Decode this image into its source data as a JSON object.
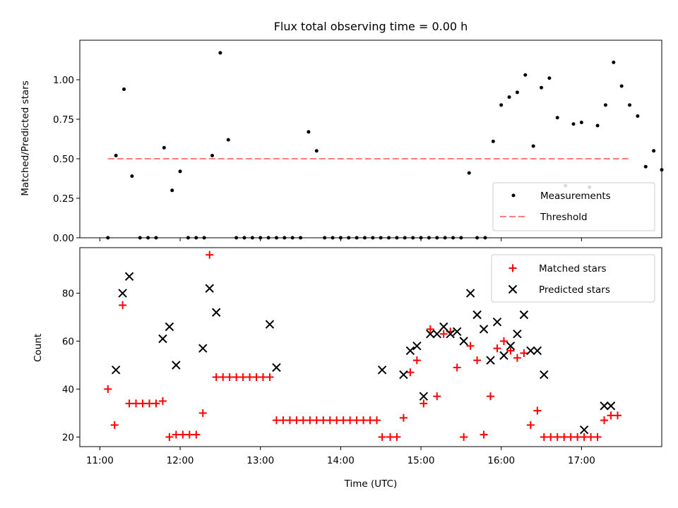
{
  "colors": {
    "measure": "#000000",
    "threshold": "#ff7f7f",
    "matched": "#ff0000",
    "predicted": "#000000"
  },
  "chart_data": [
    {
      "type": "scatter",
      "title": "Flux total observing time = 0.00 h",
      "xlabel": "",
      "ylabel": "Matched/Predicted stars",
      "xlim": [
        "10:45",
        "18:00"
      ],
      "ylim": [
        0,
        1.25
      ],
      "yticks": [
        0,
        0.25,
        0.5,
        0.75,
        1.0
      ],
      "ytick_labels": [
        "0.00",
        "0.25",
        "0.50",
        "0.75",
        "1.00"
      ],
      "grid": false,
      "legend_position": "lower-right",
      "series": [
        {
          "name": "Measurements",
          "style": "dot",
          "points": [
            {
              "x": "11:06",
              "y": 0.0
            },
            {
              "x": "11:12",
              "y": 0.52
            },
            {
              "x": "11:18",
              "y": 0.94
            },
            {
              "x": "11:24",
              "y": 0.39
            },
            {
              "x": "11:30",
              "y": 0.0
            },
            {
              "x": "11:36",
              "y": 0.0
            },
            {
              "x": "11:42",
              "y": 0.0
            },
            {
              "x": "11:48",
              "y": 0.57
            },
            {
              "x": "11:54",
              "y": 0.3
            },
            {
              "x": "12:00",
              "y": 0.42
            },
            {
              "x": "12:06",
              "y": 0.0
            },
            {
              "x": "12:12",
              "y": 0.0
            },
            {
              "x": "12:18",
              "y": 0.0
            },
            {
              "x": "12:24",
              "y": 0.52
            },
            {
              "x": "12:30",
              "y": 1.17
            },
            {
              "x": "12:36",
              "y": 0.62
            },
            {
              "x": "12:42",
              "y": 0.0
            },
            {
              "x": "12:48",
              "y": 0.0
            },
            {
              "x": "12:54",
              "y": 0.0
            },
            {
              "x": "13:00",
              "y": 0.0
            },
            {
              "x": "13:06",
              "y": 0.0
            },
            {
              "x": "13:12",
              "y": 0.0
            },
            {
              "x": "13:18",
              "y": 0.0
            },
            {
              "x": "13:24",
              "y": 0.0
            },
            {
              "x": "13:30",
              "y": 0.0
            },
            {
              "x": "13:36",
              "y": 0.67
            },
            {
              "x": "13:42",
              "y": 0.55
            },
            {
              "x": "13:48",
              "y": 0.0
            },
            {
              "x": "13:54",
              "y": 0.0
            },
            {
              "x": "14:00",
              "y": 0.0
            },
            {
              "x": "14:06",
              "y": 0.0
            },
            {
              "x": "14:12",
              "y": 0.0
            },
            {
              "x": "14:18",
              "y": 0.0
            },
            {
              "x": "14:24",
              "y": 0.0
            },
            {
              "x": "14:30",
              "y": 0.0
            },
            {
              "x": "14:36",
              "y": 0.0
            },
            {
              "x": "14:42",
              "y": 0.0
            },
            {
              "x": "14:48",
              "y": 0.0
            },
            {
              "x": "14:54",
              "y": 0.0
            },
            {
              "x": "15:00",
              "y": 0.0
            },
            {
              "x": "15:06",
              "y": 0.0
            },
            {
              "x": "15:12",
              "y": 0.0
            },
            {
              "x": "15:18",
              "y": 0.0
            },
            {
              "x": "15:24",
              "y": 0.0
            },
            {
              "x": "15:30",
              "y": 0.0
            },
            {
              "x": "15:36",
              "y": 0.41
            },
            {
              "x": "15:42",
              "y": 0.0
            },
            {
              "x": "15:48",
              "y": 0.0
            },
            {
              "x": "15:54",
              "y": 0.61
            },
            {
              "x": "16:00",
              "y": 0.84
            },
            {
              "x": "16:06",
              "y": 0.89
            },
            {
              "x": "16:12",
              "y": 0.92
            },
            {
              "x": "16:18",
              "y": 1.03
            },
            {
              "x": "16:24",
              "y": 0.58
            },
            {
              "x": "16:30",
              "y": 0.95
            },
            {
              "x": "16:36",
              "y": 1.01
            },
            {
              "x": "16:42",
              "y": 0.76
            },
            {
              "x": "16:48",
              "y": 0.33
            },
            {
              "x": "16:54",
              "y": 0.72
            },
            {
              "x": "17:00",
              "y": 0.73
            },
            {
              "x": "17:06",
              "y": 0.32
            },
            {
              "x": "17:12",
              "y": 0.71
            },
            {
              "x": "17:18",
              "y": 0.84
            },
            {
              "x": "17:24",
              "y": 1.11
            },
            {
              "x": "17:30",
              "y": 0.96
            },
            {
              "x": "17:36",
              "y": 0.84
            },
            {
              "x": "17:42",
              "y": 0.77
            },
            {
              "x": "17:48",
              "y": 0.45
            },
            {
              "x": "17:54",
              "y": 0.55
            },
            {
              "x": "18:00",
              "y": 0.43
            }
          ]
        },
        {
          "name": "Threshold",
          "style": "dashed-line",
          "x": [
            "11:06",
            "17:36"
          ],
          "y": 0.5
        }
      ]
    },
    {
      "type": "scatter",
      "title": "",
      "xlabel": "Time (UTC)",
      "ylabel": "Count",
      "xlim": [
        "10:45",
        "18:00"
      ],
      "ylim": [
        16,
        99
      ],
      "yticks": [
        20,
        40,
        60,
        80
      ],
      "ytick_labels": [
        "20",
        "40",
        "60",
        "80"
      ],
      "xticks": [
        "11:00",
        "12:00",
        "13:00",
        "14:00",
        "15:00",
        "16:00",
        "17:00"
      ],
      "grid": false,
      "legend_position": "top-right",
      "series": [
        {
          "name": "Matched stars",
          "marker": "plus",
          "points": [
            {
              "x": "11:06",
              "y": 40
            },
            {
              "x": "11:11",
              "y": 25
            },
            {
              "x": "11:17",
              "y": 75
            },
            {
              "x": "11:22",
              "y": 34
            },
            {
              "x": "11:27",
              "y": 34
            },
            {
              "x": "11:32",
              "y": 34
            },
            {
              "x": "11:37",
              "y": 34
            },
            {
              "x": "11:42",
              "y": 34
            },
            {
              "x": "11:47",
              "y": 35
            },
            {
              "x": "11:52",
              "y": 20
            },
            {
              "x": "11:57",
              "y": 21
            },
            {
              "x": "12:02",
              "y": 21
            },
            {
              "x": "12:07",
              "y": 21
            },
            {
              "x": "12:12",
              "y": 21
            },
            {
              "x": "12:17",
              "y": 30
            },
            {
              "x": "12:22",
              "y": 96
            },
            {
              "x": "12:27",
              "y": 45
            },
            {
              "x": "12:32",
              "y": 45
            },
            {
              "x": "12:37",
              "y": 45
            },
            {
              "x": "12:42",
              "y": 45
            },
            {
              "x": "12:47",
              "y": 45
            },
            {
              "x": "12:52",
              "y": 45
            },
            {
              "x": "12:57",
              "y": 45
            },
            {
              "x": "13:02",
              "y": 45
            },
            {
              "x": "13:07",
              "y": 45
            },
            {
              "x": "13:12",
              "y": 27
            },
            {
              "x": "13:17",
              "y": 27
            },
            {
              "x": "13:22",
              "y": 27
            },
            {
              "x": "13:27",
              "y": 27
            },
            {
              "x": "13:32",
              "y": 27
            },
            {
              "x": "13:37",
              "y": 27
            },
            {
              "x": "13:42",
              "y": 27
            },
            {
              "x": "13:47",
              "y": 27
            },
            {
              "x": "13:52",
              "y": 27
            },
            {
              "x": "13:57",
              "y": 27
            },
            {
              "x": "14:02",
              "y": 27
            },
            {
              "x": "14:07",
              "y": 27
            },
            {
              "x": "14:12",
              "y": 27
            },
            {
              "x": "14:17",
              "y": 27
            },
            {
              "x": "14:22",
              "y": 27
            },
            {
              "x": "14:27",
              "y": 27
            },
            {
              "x": "14:31",
              "y": 20
            },
            {
              "x": "14:37",
              "y": 20
            },
            {
              "x": "14:42",
              "y": 20
            },
            {
              "x": "14:47",
              "y": 28
            },
            {
              "x": "14:52",
              "y": 47
            },
            {
              "x": "14:57",
              "y": 52
            },
            {
              "x": "15:02",
              "y": 34
            },
            {
              "x": "15:07",
              "y": 65
            },
            {
              "x": "15:12",
              "y": 37
            },
            {
              "x": "15:17",
              "y": 63
            },
            {
              "x": "15:22",
              "y": 64
            },
            {
              "x": "15:27",
              "y": 49
            },
            {
              "x": "15:32",
              "y": 20
            },
            {
              "x": "15:37",
              "y": 58
            },
            {
              "x": "15:42",
              "y": 52
            },
            {
              "x": "15:47",
              "y": 21
            },
            {
              "x": "15:52",
              "y": 37
            },
            {
              "x": "15:57",
              "y": 57
            },
            {
              "x": "16:02",
              "y": 60
            },
            {
              "x": "16:07",
              "y": 56
            },
            {
              "x": "16:12",
              "y": 53
            },
            {
              "x": "16:17",
              "y": 55
            },
            {
              "x": "16:22",
              "y": 25
            },
            {
              "x": "16:27",
              "y": 31
            },
            {
              "x": "16:32",
              "y": 20
            },
            {
              "x": "16:37",
              "y": 20
            },
            {
              "x": "16:42",
              "y": 20
            },
            {
              "x": "16:47",
              "y": 20
            },
            {
              "x": "16:52",
              "y": 20
            },
            {
              "x": "16:57",
              "y": 20
            },
            {
              "x": "17:02",
              "y": 20
            },
            {
              "x": "17:07",
              "y": 20
            },
            {
              "x": "17:12",
              "y": 20
            },
            {
              "x": "17:17",
              "y": 27
            },
            {
              "x": "17:22",
              "y": 29
            },
            {
              "x": "17:27",
              "y": 29
            }
          ]
        },
        {
          "name": "Predicted stars",
          "marker": "x",
          "points": [
            {
              "x": "11:12",
              "y": 48
            },
            {
              "x": "11:17",
              "y": 80
            },
            {
              "x": "11:22",
              "y": 87
            },
            {
              "x": "11:47",
              "y": 61
            },
            {
              "x": "11:52",
              "y": 66
            },
            {
              "x": "11:57",
              "y": 50
            },
            {
              "x": "12:17",
              "y": 57
            },
            {
              "x": "12:22",
              "y": 82
            },
            {
              "x": "12:27",
              "y": 72
            },
            {
              "x": "13:07",
              "y": 67
            },
            {
              "x": "13:12",
              "y": 49
            },
            {
              "x": "14:31",
              "y": 48
            },
            {
              "x": "14:47",
              "y": 46
            },
            {
              "x": "14:52",
              "y": 56
            },
            {
              "x": "14:57",
              "y": 58
            },
            {
              "x": "15:02",
              "y": 37
            },
            {
              "x": "15:07",
              "y": 63
            },
            {
              "x": "15:12",
              "y": 63
            },
            {
              "x": "15:17",
              "y": 66
            },
            {
              "x": "15:22",
              "y": 63
            },
            {
              "x": "15:27",
              "y": 64
            },
            {
              "x": "15:32",
              "y": 60
            },
            {
              "x": "15:37",
              "y": 80
            },
            {
              "x": "15:42",
              "y": 71
            },
            {
              "x": "15:47",
              "y": 65
            },
            {
              "x": "15:52",
              "y": 52
            },
            {
              "x": "15:57",
              "y": 68
            },
            {
              "x": "16:02",
              "y": 54
            },
            {
              "x": "16:07",
              "y": 58
            },
            {
              "x": "16:12",
              "y": 63
            },
            {
              "x": "16:17",
              "y": 71
            },
            {
              "x": "16:22",
              "y": 56
            },
            {
              "x": "16:27",
              "y": 56
            },
            {
              "x": "16:32",
              "y": 46
            },
            {
              "x": "17:02",
              "y": 23
            },
            {
              "x": "17:17",
              "y": 33
            },
            {
              "x": "17:22",
              "y": 33
            }
          ]
        }
      ]
    }
  ]
}
